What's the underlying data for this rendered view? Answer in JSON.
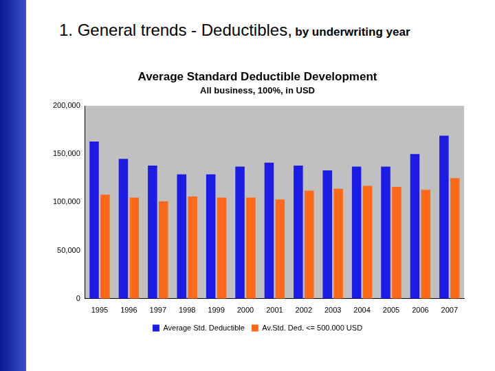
{
  "header": {
    "title": "1. General trends - Deductibles,",
    "subtitle": "by underwriting year"
  },
  "chart_data": {
    "type": "bar",
    "title": "Average Standard Deductible Development",
    "subtitle": "All business, 100%, in USD",
    "categories": [
      "1995",
      "1996",
      "1997",
      "1998",
      "1999",
      "2000",
      "2001",
      "2002",
      "2003",
      "2004",
      "2005",
      "2006",
      "2007"
    ],
    "series": [
      {
        "name": "Average Std. Deductible",
        "color": "#1c1ce6",
        "values": [
          163000,
          145000,
          138000,
          129000,
          129000,
          137000,
          141000,
          138000,
          133000,
          137000,
          137000,
          150000,
          169000
        ]
      },
      {
        "name": "Av.Std. Ded. <= 500.000 USD",
        "color": "#ff6a1a",
        "values": [
          108000,
          105000,
          101000,
          106000,
          105000,
          105000,
          103000,
          112000,
          114000,
          117000,
          116000,
          113000,
          125000
        ]
      }
    ],
    "ylim": [
      0,
      200000
    ],
    "yticks": [
      0,
      {
        "value": 50000,
        "label": "50,000"
      },
      {
        "value": 100000,
        "label": "100,000"
      },
      {
        "value": 150000,
        "label": "150,000"
      },
      {
        "value": 200000,
        "label": "200,000"
      }
    ],
    "grid": false,
    "legend": "bottom"
  }
}
